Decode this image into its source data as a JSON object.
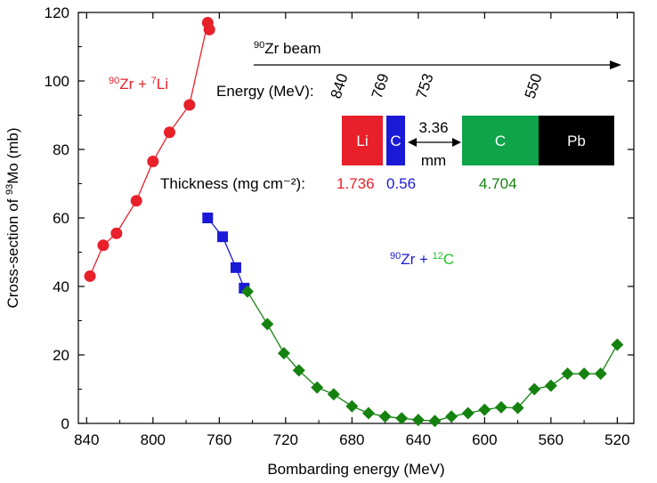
{
  "chart_data": {
    "type": "scatter",
    "xlabel": "Bombarding energy (MeV)",
    "ylabel_parts": {
      "pre": "Cross-section of ",
      "sup": "93",
      "post": "Mo (mb)"
    },
    "xlim": [
      845,
      510
    ],
    "ylim": [
      0,
      120
    ],
    "x_reversed": true,
    "xticks": [
      840,
      800,
      760,
      720,
      680,
      640,
      600,
      560,
      520
    ],
    "yticks": [
      0,
      20,
      40,
      60,
      80,
      100,
      120
    ],
    "grid": false,
    "series": [
      {
        "label_parts": [
          {
            "text": "90",
            "sup": true
          },
          {
            "text": "Zr + "
          },
          {
            "text": "7",
            "sup": true
          },
          {
            "text": "Li"
          }
        ],
        "color": "#e8202a",
        "marker": "circle",
        "x": [
          838,
          830,
          822,
          810,
          800,
          790,
          778,
          767,
          766
        ],
        "y": [
          43,
          52,
          55.5,
          65,
          76.5,
          85,
          93,
          117,
          115
        ]
      },
      {
        "label_parts": [
          {
            "text": "90",
            "sup": true
          },
          {
            "text": "Zr + "
          }
        ],
        "color": "#1a1ad6",
        "marker": "square",
        "x": [
          767,
          758,
          750,
          745
        ],
        "y": [
          60,
          54.5,
          45.5,
          39.5
        ]
      },
      {
        "label_parts": [
          {
            "text": "12",
            "sup": true
          },
          {
            "text": "C"
          }
        ],
        "color": "#15820f",
        "marker": "diamond",
        "x": [
          743,
          731,
          721,
          712,
          701,
          691,
          680,
          670,
          660,
          650,
          640,
          630,
          620,
          610,
          600,
          590,
          580,
          570,
          560,
          550,
          540,
          530,
          520
        ],
        "y": [
          38.5,
          29,
          20.5,
          15.5,
          10.5,
          8.5,
          5,
          3,
          2,
          1.5,
          1,
          0.7,
          2,
          3,
          4,
          4.7,
          4.5,
          10,
          11,
          14.5,
          14.5,
          14.5,
          23
        ]
      }
    ],
    "annotations": {
      "beam_label": {
        "sup": "90",
        "text": "Zr beam"
      },
      "energy_title": "Energy (MeV):",
      "energies": [
        "840",
        "769",
        "753",
        "550"
      ],
      "gap_value": "3.36",
      "gap_unit": "mm",
      "thickness_title": "Thickness (mg cm⁻²):",
      "thickness_values": [
        {
          "text": "1.736",
          "color": "#e8202a"
        },
        {
          "text": "0.56",
          "color": "#1a1ad6"
        },
        {
          "text": "4.704",
          "color": "#15820f"
        }
      ],
      "targets": [
        {
          "label": "Li",
          "color": "#e8202a"
        },
        {
          "label": "C",
          "color": "#1a1ad6"
        },
        {
          "label": "C",
          "color": "#0fa34a"
        },
        {
          "label": "Pb",
          "color": "#000000"
        }
      ]
    }
  }
}
